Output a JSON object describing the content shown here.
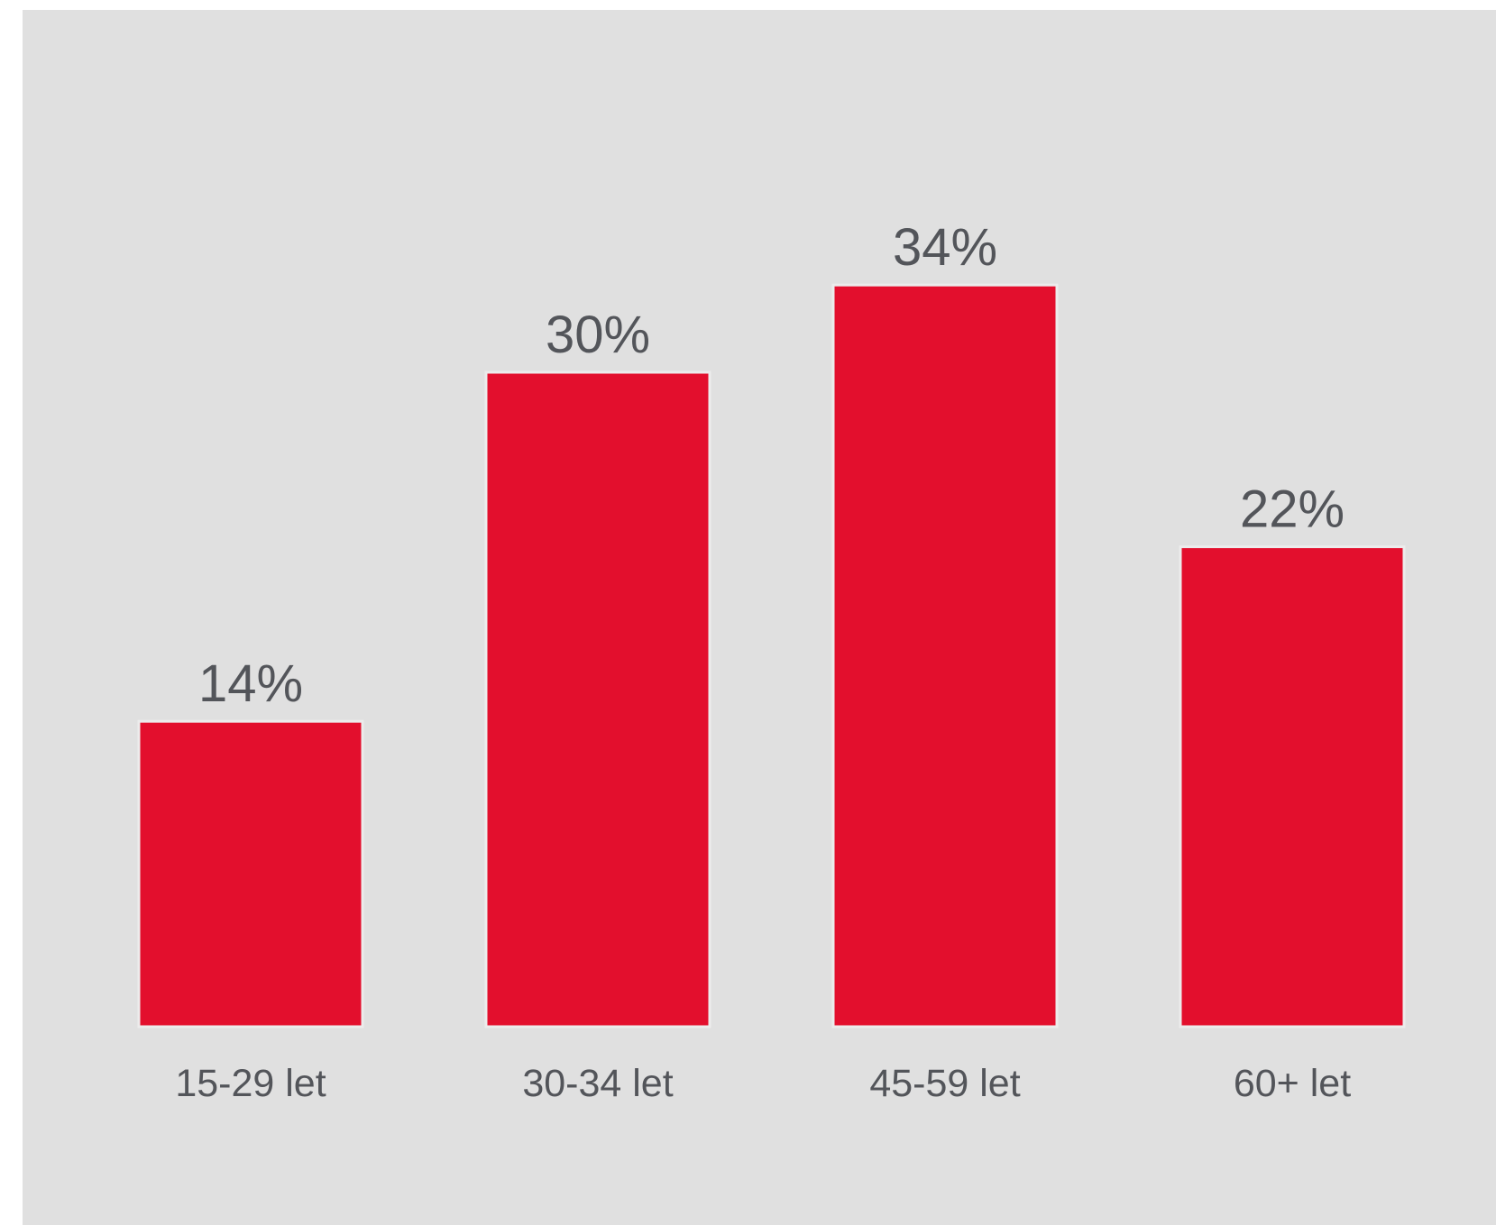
{
  "chart_data": {
    "type": "bar",
    "categories": [
      "15-29 let",
      "30-34 let",
      "45-59 let",
      "60+ let"
    ],
    "values": [
      14,
      30,
      34,
      22
    ],
    "value_labels": [
      "14%",
      "30%",
      "34%",
      "22%"
    ],
    "title": "",
    "xlabel": "",
    "ylabel": "",
    "ylim": [
      0,
      45
    ],
    "grid": false,
    "legend": "none",
    "colors": {
      "bar": "#e30f2d",
      "background": "#e0e0e0",
      "text": "#53555a"
    }
  }
}
